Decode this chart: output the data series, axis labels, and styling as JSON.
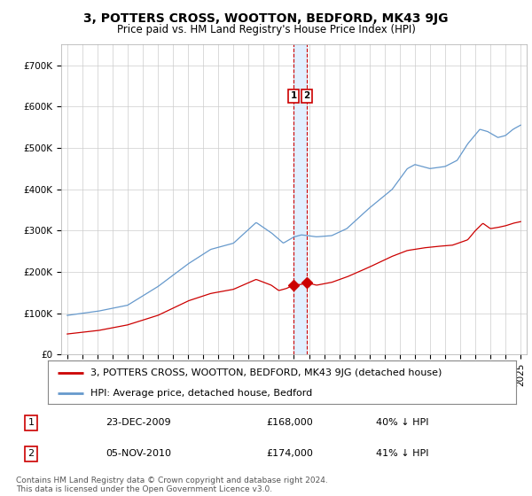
{
  "title": "3, POTTERS CROSS, WOOTTON, BEDFORD, MK43 9JG",
  "subtitle": "Price paid vs. HM Land Registry's House Price Index (HPI)",
  "ylim": [
    0,
    750000
  ],
  "yticks": [
    0,
    100000,
    200000,
    300000,
    400000,
    500000,
    600000,
    700000
  ],
  "ytick_labels": [
    "£0",
    "£100K",
    "£200K",
    "£300K",
    "£400K",
    "£500K",
    "£600K",
    "£700K"
  ],
  "hpi_color": "#6699cc",
  "price_color": "#cc0000",
  "marker_color": "#cc0000",
  "vline_color": "#cc0000",
  "vband_color": "#ddeeff",
  "grid_color": "#cccccc",
  "bg_color": "#ffffff",
  "legend_label_price": "3, POTTERS CROSS, WOOTTON, BEDFORD, MK43 9JG (detached house)",
  "legend_label_hpi": "HPI: Average price, detached house, Bedford",
  "transaction1_date": "23-DEC-2009",
  "transaction1_price": "£168,000",
  "transaction1_hpi": "40% ↓ HPI",
  "transaction1_year": 2009.97,
  "transaction2_date": "05-NOV-2010",
  "transaction2_price": "£174,000",
  "transaction2_hpi": "41% ↓ HPI",
  "transaction2_year": 2010.85,
  "footnote": "Contains HM Land Registry data © Crown copyright and database right 2024.\nThis data is licensed under the Open Government Licence v3.0.",
  "title_fontsize": 10,
  "subtitle_fontsize": 8.5,
  "tick_fontsize": 7.5,
  "legend_fontsize": 8,
  "footnote_fontsize": 6.5,
  "table_fontsize": 8
}
